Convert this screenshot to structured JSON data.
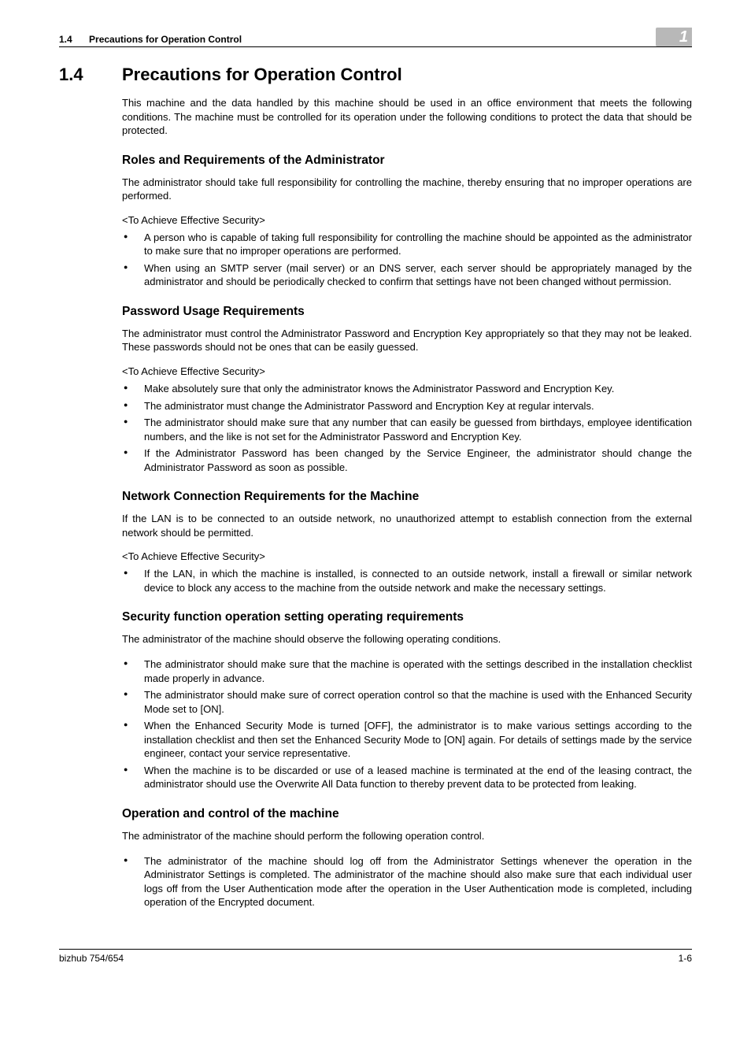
{
  "header": {
    "section_number": "1.4",
    "section_title": "Precautions for Operation Control",
    "chapter_number": "1"
  },
  "main": {
    "heading_number": "1.4",
    "heading_title": "Precautions for Operation Control",
    "intro": "This machine and the data handled by this machine should be used in an office environment that meets the following conditions. The machine must be controlled for its operation under the following conditions to protect the data that should be protected.",
    "sections": [
      {
        "title": "Roles and Requirements of the Administrator",
        "para": "The administrator should take full responsibility for controlling the machine, thereby ensuring that no improper operations are performed.",
        "tag": "<To Achieve Effective Security>",
        "bullets": [
          "A person who is capable of taking full responsibility for controlling the machine should be appointed as the administrator to make sure that no improper operations are performed.",
          "When using an SMTP server (mail server) or an DNS server, each server should be appropriately managed by the administrator and should be periodically checked to confirm that settings have not been changed without permission."
        ]
      },
      {
        "title": "Password Usage Requirements",
        "para": "The administrator must control the Administrator Password and Encryption Key appropriately so that they may not be leaked. These passwords should not be ones that can be easily guessed.",
        "tag": "<To Achieve Effective Security>",
        "bullets": [
          "Make absolutely sure that only the administrator knows the Administrator Password and Encryption Key.",
          "The administrator must change the Administrator Password and Encryption Key at regular intervals.",
          "The administrator should make sure that any number that can easily be guessed from birthdays, employee identification numbers, and the like is not set for the Administrator Password and Encryption Key.",
          "If the Administrator Password has been changed by the Service Engineer, the administrator should change the Administrator Password as soon as possible."
        ]
      },
      {
        "title": "Network Connection Requirements for the Machine",
        "para": "If the LAN is to be connected to an outside network, no unauthorized attempt to establish connection from the external network should be permitted.",
        "tag": "<To Achieve Effective Security>",
        "bullets": [
          "If the LAN, in which the machine is installed, is connected to an outside network, install a firewall or similar network device to block any access to the machine from the outside network and make the necessary settings."
        ]
      },
      {
        "title": "Security function operation setting operating requirements",
        "para": "The administrator of the machine should observe the following operating conditions.",
        "tag": "",
        "bullets": [
          "The administrator should make sure that the machine is operated with the settings described in the installation checklist made properly in advance.",
          "The administrator should make sure of correct operation control so that the machine is used with the Enhanced Security Mode set to [ON].",
          "When the Enhanced Security Mode is turned [OFF], the administrator is to make various settings according to the installation checklist and then set the Enhanced Security Mode to [ON] again. For details of settings made by the service engineer, contact your service representative.",
          "When the machine is to be discarded or use of a leased machine is terminated at the end of the leasing contract, the administrator should use the Overwrite All Data function to thereby prevent data to be protected from leaking."
        ]
      },
      {
        "title": "Operation and control of the machine",
        "para": "The administrator of the machine should perform the following operation control.",
        "tag": "",
        "bullets": [
          "The administrator of the machine should log off from the Administrator Settings whenever the operation in the Administrator Settings is completed. The administrator of the machine should also make sure that each individual user logs off from the User Authentication mode after the operation in the User Authentication mode is completed, including operation of the Encrypted document."
        ]
      }
    ]
  },
  "footer": {
    "left": "bizhub 754/654",
    "right": "1-6"
  }
}
